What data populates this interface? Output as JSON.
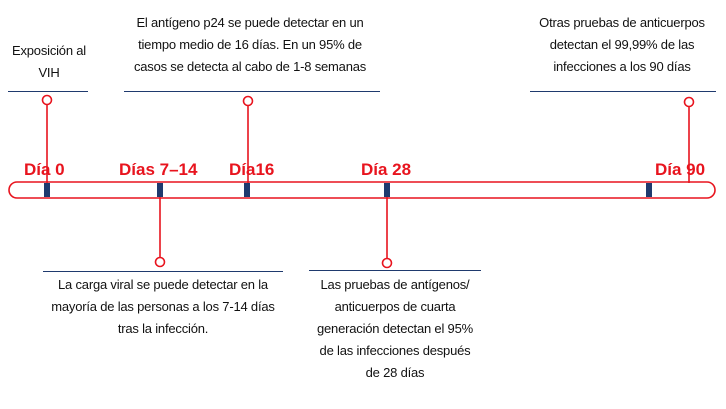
{
  "timeline": {
    "days": [
      {
        "id": "day-0",
        "label": "Día 0",
        "value": 0
      },
      {
        "id": "day-7-14",
        "label": "Días 7–14",
        "value": 10.5
      },
      {
        "id": "day-16",
        "label": "Día16",
        "value": 16
      },
      {
        "id": "day-28",
        "label": "Día 28",
        "value": 28
      },
      {
        "id": "day-90",
        "label": "Día 90",
        "value": 90
      }
    ],
    "colors": {
      "label": "#e8141e",
      "bar_border": "#e8141e",
      "tick": "#1f3a6e",
      "connector": "#e8141e",
      "rule": "#1f3a6e"
    }
  },
  "notes": {
    "exposure": "Exposición al\nVIH",
    "p24": "El antígeno p24 se puede detectar en un\ntiempo medio de 16 días. En un 95% de\ncasos se detecta al cabo de 1-8 semanas",
    "antibodies": "Otras pruebas de anticuerpos\ndetectan el 99,99% de las\ninfecciones a los 90 días",
    "viral_load": "La carga viral se puede detectar en la\nmayoría de las personas a los 7-14 días\ntras la infección.",
    "fourth_gen": "Las pruebas de antígenos/\nanticuerpos de cuarta\ngeneración detectan el 95%\nde las infecciones después\nde 28 días"
  }
}
